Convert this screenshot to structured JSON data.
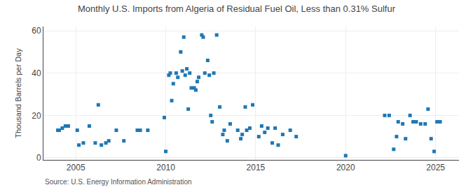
{
  "chart_data": {
    "type": "scatter",
    "title": "Monthly U.S. Imports from Algeria of Residual Fuel Oil, Less than 0.31% Sulfur",
    "ylabel": "Thousand Barrels per Day",
    "annotations": [
      "Source: U.S. Energy Information Administration"
    ],
    "marker": "square",
    "grid": true,
    "xlim": [
      2003.2,
      2026.3
    ],
    "ylim": [
      -1,
      62
    ],
    "xticks": [
      2005,
      2010,
      2015,
      2020,
      2025
    ],
    "yticks": [
      0,
      20,
      40,
      60
    ],
    "x": [
      2004.0,
      2004.08,
      2004.25,
      2004.42,
      2004.58,
      2005.08,
      2005.17,
      2005.42,
      2005.75,
      2006.08,
      2006.25,
      2006.42,
      2006.67,
      2006.83,
      2007.25,
      2007.67,
      2008.42,
      2008.58,
      2009.0,
      2009.92,
      2010.0,
      2010.17,
      2010.25,
      2010.33,
      2010.42,
      2010.58,
      2010.67,
      2010.83,
      2010.92,
      2011.0,
      2011.08,
      2011.17,
      2011.25,
      2011.33,
      2011.42,
      2011.58,
      2011.67,
      2011.75,
      2011.83,
      2012.0,
      2012.08,
      2012.17,
      2012.33,
      2012.42,
      2012.5,
      2012.58,
      2012.67,
      2012.83,
      2013.0,
      2013.17,
      2013.25,
      2013.42,
      2013.58,
      2014.0,
      2014.17,
      2014.25,
      2014.42,
      2014.5,
      2014.67,
      2014.83,
      2015.17,
      2015.33,
      2015.5,
      2015.67,
      2015.92,
      2016.08,
      2016.25,
      2016.5,
      2016.92,
      2017.25,
      2020.0,
      2022.17,
      2022.42,
      2022.67,
      2022.83,
      2022.92,
      2023.17,
      2023.33,
      2023.58,
      2023.75,
      2023.92,
      2024.17,
      2024.42,
      2024.58,
      2024.75,
      2024.92,
      2025.08,
      2025.25
    ],
    "values": [
      13,
      13,
      14,
      15,
      15,
      13,
      6,
      7,
      15,
      7,
      25,
      6,
      7,
      8,
      13,
      8,
      13,
      13,
      13,
      19,
      3,
      39,
      40,
      27,
      35,
      40,
      38,
      50,
      41,
      57,
      39,
      42,
      23,
      40,
      33,
      33,
      32,
      36,
      38,
      58,
      57,
      40,
      46,
      39,
      20,
      17,
      40,
      58,
      24,
      11,
      13,
      8,
      16,
      13,
      9,
      11,
      24,
      13,
      14,
      25,
      10,
      15,
      12,
      14,
      7,
      14,
      6,
      11,
      13,
      10,
      1,
      20,
      20,
      4,
      10,
      17,
      16,
      9,
      20,
      17,
      17,
      16,
      16,
      23,
      9,
      3,
      17,
      17
    ]
  }
}
